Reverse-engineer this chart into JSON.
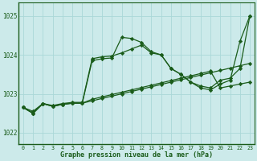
{
  "title": "Graphe pression niveau de la mer (hPa)",
  "background_color": "#cceaea",
  "grid_color": "#aad8d8",
  "line_color": "#1a5c1a",
  "xlim": [
    -0.5,
    23.5
  ],
  "ylim": [
    1021.7,
    1025.35
  ],
  "yticks": [
    1022,
    1023,
    1024,
    1025
  ],
  "xticks": [
    0,
    1,
    2,
    3,
    4,
    5,
    6,
    7,
    8,
    9,
    10,
    11,
    12,
    13,
    14,
    15,
    16,
    17,
    18,
    19,
    20,
    21,
    22,
    23
  ],
  "series": [
    [
      1022.65,
      1022.55,
      1022.75,
      1022.7,
      1022.75,
      1022.78,
      1022.78,
      1023.9,
      1023.95,
      1023.97,
      1024.05,
      1024.15,
      1024.25,
      1024.05,
      1024.0,
      1023.65,
      1023.5,
      1023.3,
      1023.2,
      1023.15,
      1023.35,
      1023.4,
      1023.65,
      1025.0
    ],
    [
      1022.65,
      1022.5,
      1022.75,
      1022.68,
      1022.73,
      1022.76,
      1022.76,
      1023.85,
      1023.9,
      1023.92,
      1024.45,
      1024.42,
      1024.32,
      1024.08,
      1024.0,
      1023.65,
      1023.5,
      1023.3,
      1023.15,
      1023.1,
      1023.25,
      1023.35,
      1024.35,
      1025.0
    ],
    [
      1022.65,
      1022.5,
      1022.75,
      1022.68,
      1022.73,
      1022.76,
      1022.76,
      1022.82,
      1022.88,
      1022.94,
      1023.0,
      1023.06,
      1023.12,
      1023.18,
      1023.24,
      1023.3,
      1023.36,
      1023.42,
      1023.48,
      1023.54,
      1023.6,
      1023.66,
      1023.72,
      1023.78
    ],
    [
      1022.65,
      1022.5,
      1022.75,
      1022.68,
      1022.73,
      1022.76,
      1022.76,
      1022.86,
      1022.92,
      1022.98,
      1023.04,
      1023.1,
      1023.16,
      1023.22,
      1023.28,
      1023.34,
      1023.4,
      1023.46,
      1023.52,
      1023.58,
      1023.15,
      1023.2,
      1023.25,
      1023.3
    ]
  ]
}
